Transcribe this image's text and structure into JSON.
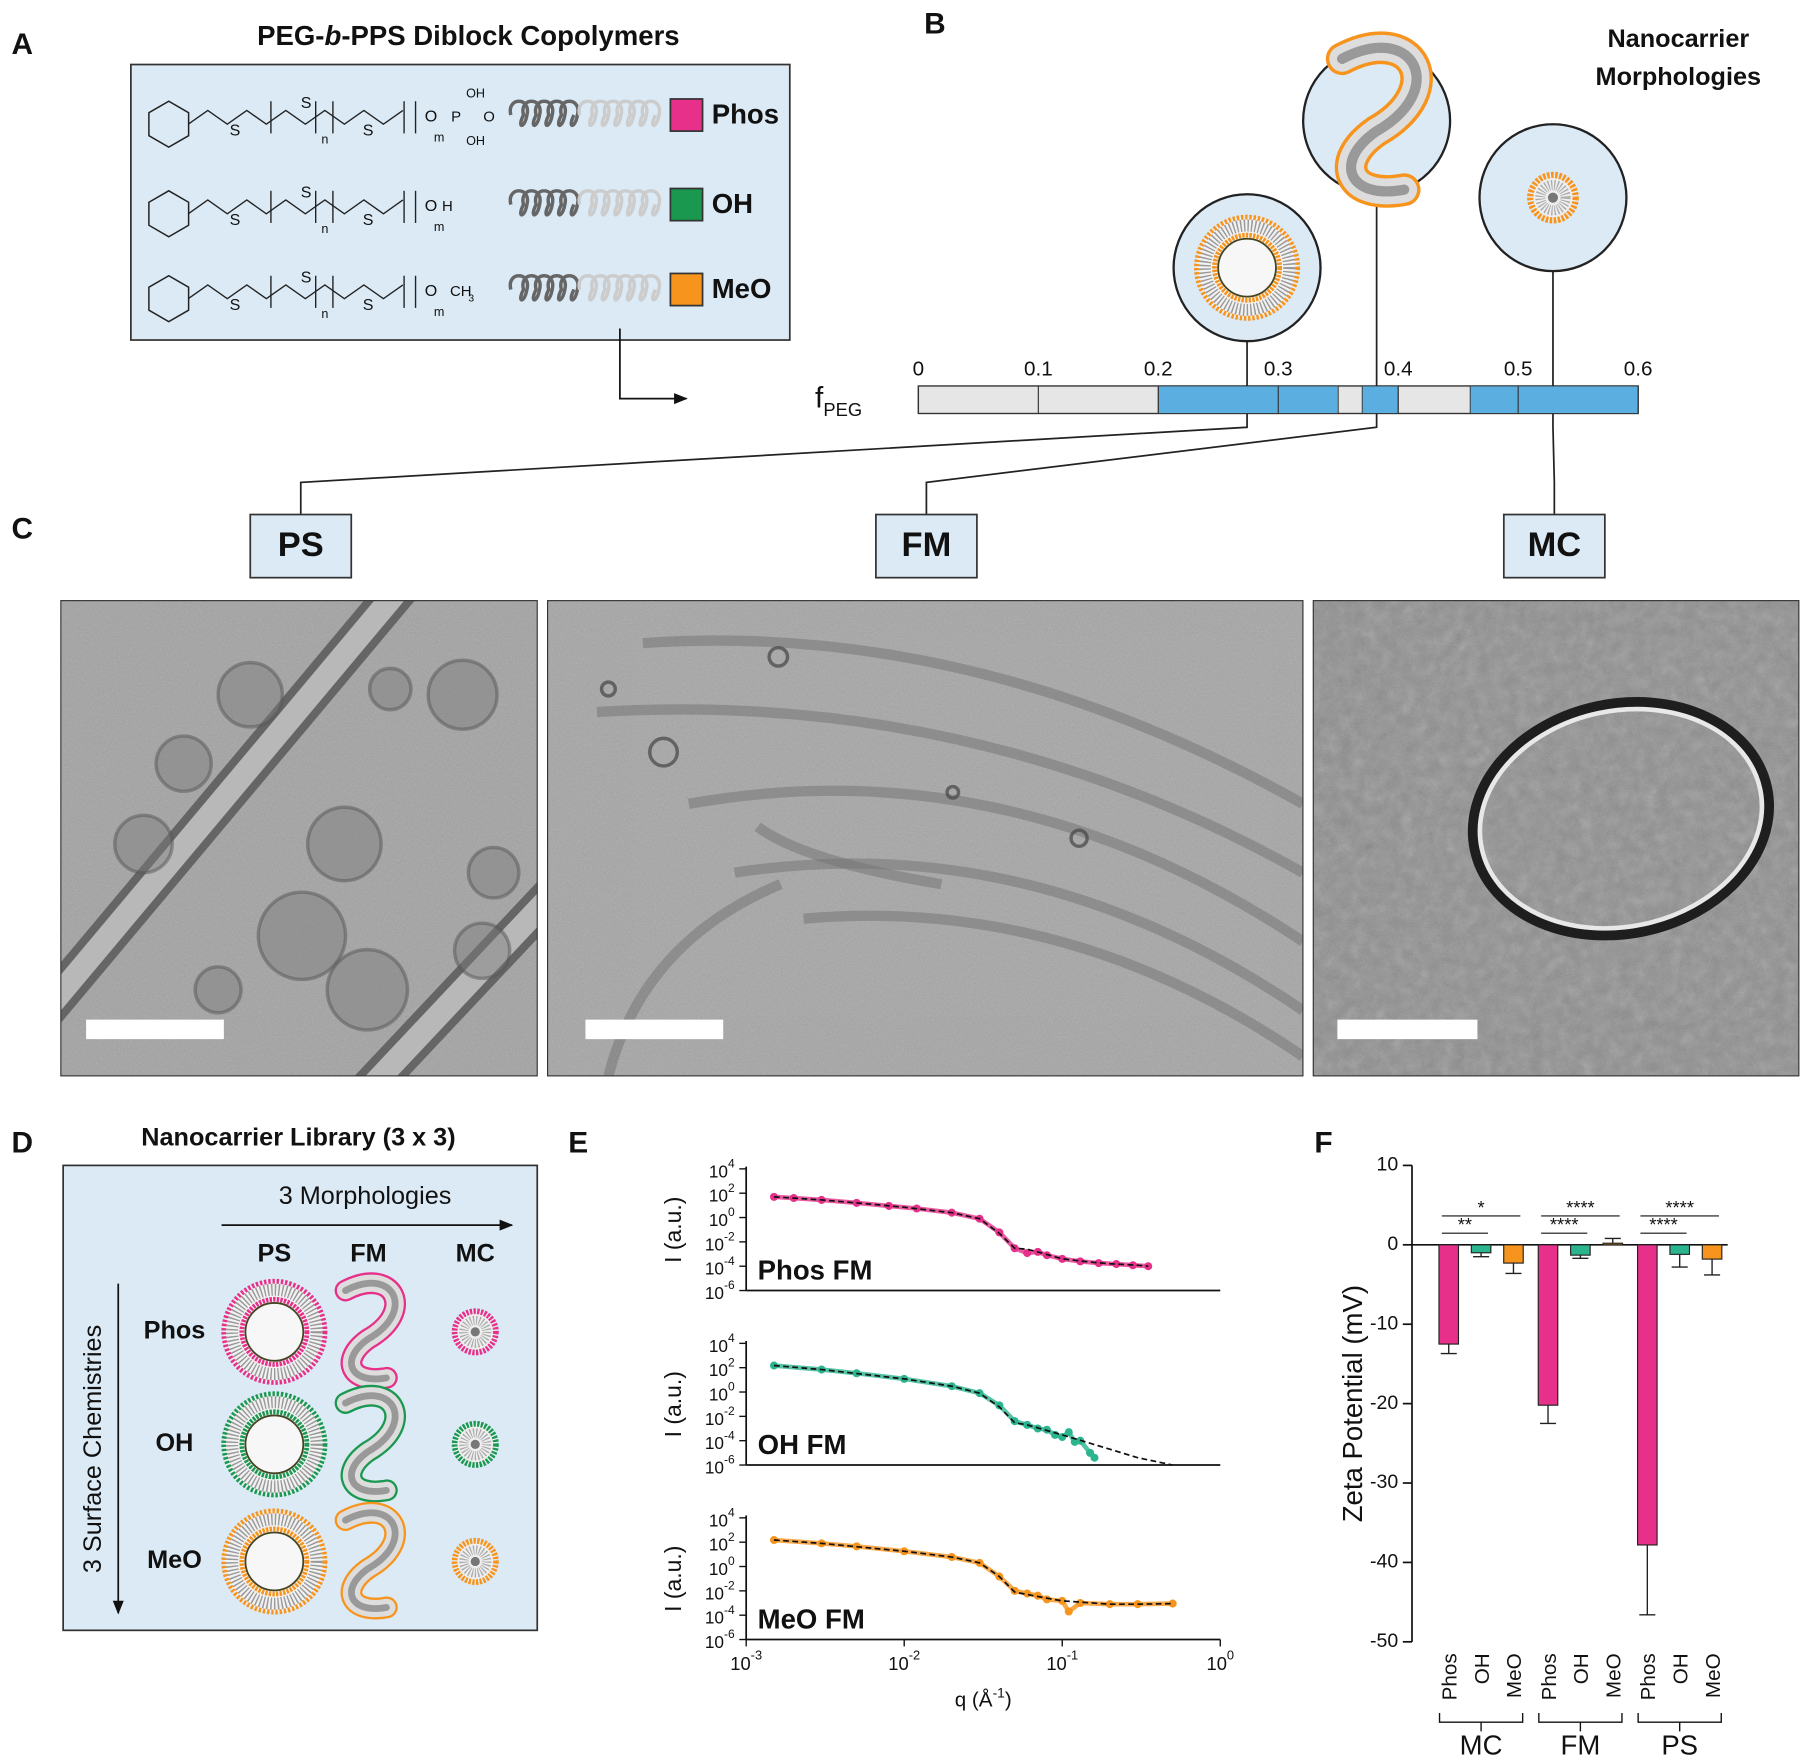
{
  "panel_labels": [
    "A",
    "B",
    "C",
    "D",
    "E",
    "F"
  ],
  "panel_a": {
    "title": [
      "PEG-",
      "b",
      "-PPS Diblock Copolymers"
    ],
    "backbone_labels": [
      "S",
      "S",
      "n",
      "S",
      "O",
      "m"
    ],
    "chemistries": [
      {
        "label": "Phos",
        "color": "#e6308a",
        "end_group": [
          "P",
          "OH",
          "O",
          "OH"
        ]
      },
      {
        "label": "OH",
        "color": "#1a9850",
        "end_group": [
          "H"
        ]
      },
      {
        "label": "MeO",
        "color": "#f7941d",
        "end_group": [
          "CH",
          "3"
        ]
      }
    ]
  },
  "panel_b": {
    "title": [
      "Nanocarrier",
      "Morphologies"
    ],
    "axis_label": [
      "f",
      "PEG"
    ],
    "xlim": [
      0,
      0.6
    ],
    "xticks": [
      0,
      0.1,
      0.2,
      0.3,
      0.4,
      0.5,
      0.6
    ],
    "range_color": "#5aaee0",
    "ranges": [
      [
        0.2,
        0.35
      ],
      [
        0.37,
        0.4
      ],
      [
        0.46,
        0.6
      ]
    ],
    "morphologies": [
      {
        "label": "PS",
        "f": 0.274
      },
      {
        "label": "FM",
        "f": 0.382
      },
      {
        "label": "MC",
        "f": 0.529
      }
    ]
  },
  "panel_d": {
    "title": "Nanocarrier Library (3 x 3)",
    "columns_label": "3 Morphologies",
    "rows_label": "3 Surface Chemistries",
    "columns": [
      "PS",
      "FM",
      "MC"
    ],
    "rows": [
      {
        "label": "Phos",
        "color": "#e6308a"
      },
      {
        "label": "OH",
        "color": "#1a9850"
      },
      {
        "label": "MeO",
        "color": "#f7941d"
      }
    ]
  },
  "chart_data": [
    {
      "type": "scatter",
      "label": "Phos FM",
      "label_color": "#e6308a",
      "ylabel": "I (a.u.)",
      "xlog": true,
      "ylog": true,
      "xlim": [
        0.001,
        1
      ],
      "ylim": [
        1e-06,
        10000
      ],
      "yticks": [
        {
          "value": 10000,
          "label": "10",
          "exponent": "4"
        },
        {
          "value": 100,
          "label": "10",
          "exponent": "2"
        },
        {
          "value": 1,
          "label": "10",
          "exponent": "0"
        },
        {
          "value": 0.01,
          "label": "10",
          "exponent": "-2"
        },
        {
          "value": 0.0001,
          "label": "10",
          "exponent": "-4"
        },
        {
          "value": 1e-06,
          "label": "10",
          "exponent": "-6"
        }
      ],
      "series": [
        {
          "style": "points",
          "color": "#e6308a",
          "x": [
            0.0015,
            0.002,
            0.003,
            0.005,
            0.008,
            0.012,
            0.02,
            0.03,
            0.04,
            0.05,
            0.06,
            0.07,
            0.08,
            0.1,
            0.13,
            0.17,
            0.22,
            0.28,
            0.35
          ],
          "values": [
            50,
            40,
            28,
            16,
            9,
            5.5,
            2.5,
            0.8,
            0.06,
            0.003,
            0.0012,
            0.0015,
            0.0008,
            0.0004,
            0.00025,
            0.00018,
            0.00015,
            0.00012,
            0.0001
          ]
        },
        {
          "style": "dashed",
          "color": "#111111",
          "x": [
            0.0015,
            0.003,
            0.006,
            0.01,
            0.02,
            0.03,
            0.04,
            0.05,
            0.06,
            0.07,
            0.1,
            0.15,
            0.2,
            0.3,
            0.35
          ],
          "values": [
            50,
            28,
            13,
            7,
            2.5,
            0.8,
            0.05,
            0.003,
            0.0025,
            0.0015,
            0.0004,
            0.00022,
            0.00016,
            0.00012,
            0.0001
          ]
        }
      ]
    },
    {
      "type": "scatter",
      "label": "OH FM",
      "label_color": "#2bb58f",
      "ylabel": "I (a.u.)",
      "xlog": true,
      "ylog": true,
      "xlim": [
        0.001,
        1
      ],
      "ylim": [
        1e-06,
        10000
      ],
      "yticks": [
        {
          "value": 10000,
          "label": "10",
          "exponent": "4"
        },
        {
          "value": 100,
          "label": "10",
          "exponent": "2"
        },
        {
          "value": 1,
          "label": "10",
          "exponent": "0"
        },
        {
          "value": 0.01,
          "label": "10",
          "exponent": "-2"
        },
        {
          "value": 0.0001,
          "label": "10",
          "exponent": "-4"
        },
        {
          "value": 1e-06,
          "label": "10",
          "exponent": "-6"
        }
      ],
      "series": [
        {
          "style": "points",
          "color": "#2bb58f",
          "x": [
            0.0015,
            0.003,
            0.005,
            0.01,
            0.02,
            0.03,
            0.04,
            0.05,
            0.06,
            0.07,
            0.08,
            0.09,
            0.1,
            0.11,
            0.12,
            0.13,
            0.15,
            0.16
          ],
          "values": [
            150,
            70,
            35,
            12,
            3,
            0.8,
            0.08,
            0.004,
            0.002,
            0.001,
            0.0008,
            0.0003,
            0.0002,
            0.0005,
            8e-05,
            0.0001,
            1e-05,
            4e-06
          ]
        },
        {
          "style": "dashed",
          "color": "#111111",
          "x": [
            0.0015,
            0.003,
            0.01,
            0.02,
            0.03,
            0.04,
            0.05,
            0.06,
            0.1,
            0.2,
            0.3,
            0.5
          ],
          "values": [
            150,
            70,
            12,
            3,
            0.8,
            0.06,
            0.003,
            0.002,
            0.0003,
            2e-05,
            4e-06,
            1e-06
          ]
        }
      ]
    },
    {
      "type": "scatter",
      "label": "MeO FM",
      "label_color": "#f7941d",
      "ylabel": "I (a.u.)",
      "xlabel": [
        "q (Å",
        "-1",
        ")"
      ],
      "xlog": true,
      "ylog": true,
      "xlim": [
        0.001,
        1
      ],
      "ylim": [
        1e-06,
        10000
      ],
      "xticks": [
        {
          "value": 0.001,
          "label": "10",
          "exponent": "-3"
        },
        {
          "value": 0.01,
          "label": "10",
          "exponent": "-2"
        },
        {
          "value": 0.1,
          "label": "10",
          "exponent": "-1"
        },
        {
          "value": 1,
          "label": "10",
          "exponent": "0"
        }
      ],
      "yticks": [
        {
          "value": 10000,
          "label": "10",
          "exponent": "4"
        },
        {
          "value": 100,
          "label": "10",
          "exponent": "2"
        },
        {
          "value": 1,
          "label": "10",
          "exponent": "0"
        },
        {
          "value": 0.01,
          "label": "10",
          "exponent": "-2"
        },
        {
          "value": 0.0001,
          "label": "10",
          "exponent": "-4"
        },
        {
          "value": 1e-06,
          "label": "10",
          "exponent": "-6"
        }
      ],
      "series": [
        {
          "style": "points",
          "color": "#f7941d",
          "x": [
            0.0015,
            0.003,
            0.005,
            0.01,
            0.02,
            0.03,
            0.04,
            0.05,
            0.06,
            0.07,
            0.08,
            0.1,
            0.11,
            0.13,
            0.2,
            0.3,
            0.5
          ],
          "values": [
            150,
            80,
            45,
            18,
            6,
            2,
            0.15,
            0.01,
            0.006,
            0.004,
            0.002,
            0.0015,
            0.0002,
            0.001,
            0.0008,
            0.0008,
            0.0009
          ]
        },
        {
          "style": "dashed",
          "color": "#111111",
          "x": [
            0.0015,
            0.003,
            0.01,
            0.02,
            0.03,
            0.04,
            0.05,
            0.06,
            0.08,
            0.1,
            0.2,
            0.3,
            0.5
          ],
          "values": [
            150,
            80,
            18,
            6,
            2,
            0.15,
            0.008,
            0.005,
            0.0025,
            0.0015,
            0.0008,
            0.0008,
            0.0009
          ]
        }
      ]
    },
    {
      "type": "bar",
      "ylabel": "Zeta Potential (mV)",
      "ylim": [
        -50,
        10
      ],
      "yticks": [
        10,
        0,
        -10,
        -20,
        -30,
        -40,
        -50
      ],
      "categories": [
        "Phos",
        "OH",
        "MeO",
        "Phos",
        "OH",
        "MeO",
        "Phos",
        "OH",
        "MeO"
      ],
      "groups": [
        "MC",
        "FM",
        "PS"
      ],
      "values": [
        -12.5,
        -1.0,
        -2.3,
        -20.2,
        -1.3,
        0.2,
        -37.8,
        -1.2,
        -1.8
      ],
      "errors": [
        1.2,
        0.5,
        1.3,
        2.3,
        0.4,
        0.6,
        8.8,
        1.6,
        2.0
      ],
      "colors": [
        "#e6308a",
        "#2bb58f",
        "#f7941d",
        "#e6308a",
        "#2bb58f",
        "#f7941d",
        "#e6308a",
        "#2bb58f",
        "#f7941d"
      ],
      "annotations": [
        {
          "text": "**",
          "from": 0,
          "to": 1
        },
        {
          "text": "*",
          "from": 0,
          "to": 2
        },
        {
          "text": "****",
          "from": 3,
          "to": 4
        },
        {
          "text": "****",
          "from": 3,
          "to": 5
        },
        {
          "text": "****",
          "from": 6,
          "to": 7
        },
        {
          "text": "****",
          "from": 6,
          "to": 8
        }
      ]
    }
  ]
}
